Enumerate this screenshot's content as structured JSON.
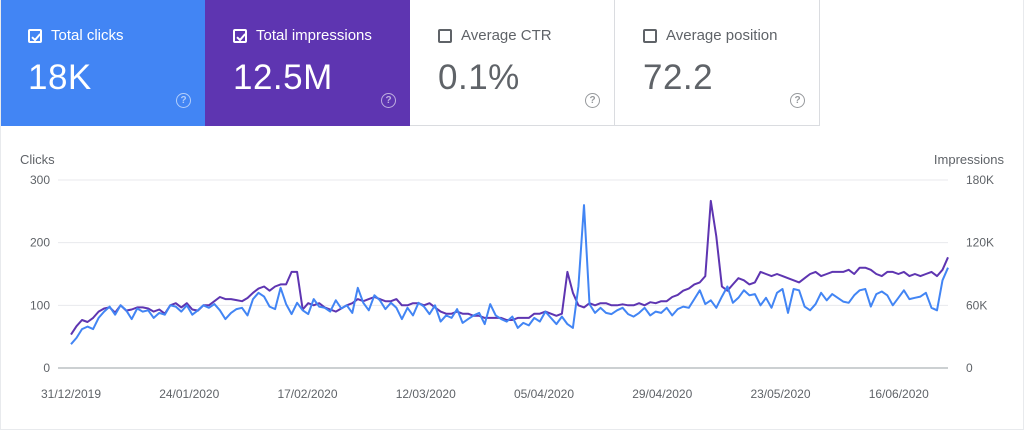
{
  "cards": [
    {
      "label": "Total clicks",
      "value": "18K",
      "checked": true,
      "color": "#4285f4"
    },
    {
      "label": "Total impressions",
      "value": "12.5M",
      "checked": true,
      "color": "#5e35b1"
    },
    {
      "label": "Average CTR",
      "value": "0.1%",
      "checked": false
    },
    {
      "label": "Average position",
      "value": "72.2",
      "checked": false
    }
  ],
  "help_glyph": "?",
  "chart_data": {
    "type": "line",
    "ylabel_left": "Clicks",
    "ylabel_right": "Impressions",
    "y_left_ticks": [
      "0",
      "100",
      "200",
      "300"
    ],
    "y_right_ticks": [
      "0",
      "60K",
      "120K",
      "180K"
    ],
    "ylim_left": [
      0,
      300
    ],
    "ylim_right": [
      0,
      180000
    ],
    "x_ticks": [
      "31/12/2019",
      "24/01/2020",
      "17/02/2020",
      "12/03/2020",
      "05/04/2020",
      "29/04/2020",
      "23/05/2020",
      "16/06/2020"
    ],
    "x_range": [
      "2019-12-31",
      "2020-06-26"
    ],
    "grid": true,
    "series": [
      {
        "name": "Clicks",
        "axis": "left",
        "color": "#4285f4",
        "values": [
          38,
          48,
          62,
          66,
          62,
          80,
          90,
          98,
          85,
          100,
          92,
          78,
          95,
          90,
          92,
          80,
          88,
          85,
          100,
          98,
          90,
          100,
          85,
          92,
          100,
          96,
          102,
          92,
          78,
          88,
          94,
          96,
          84,
          110,
          120,
          114,
          98,
          94,
          128,
          102,
          86,
          104,
          92,
          86,
          110,
          98,
          96,
          90,
          108,
          95,
          100,
          88,
          128,
          104,
          92,
          116,
          108,
          94,
          104,
          96,
          78,
          96,
          84,
          104,
          98,
          86,
          100,
          74,
          84,
          80,
          94,
          72,
          78,
          84,
          88,
          70,
          102,
          84,
          78,
          74,
          82,
          64,
          72,
          68,
          80,
          74,
          90,
          80,
          70,
          82,
          70,
          64,
          130,
          260,
          102,
          88,
          96,
          88,
          86,
          92,
          96,
          86,
          82,
          88,
          96,
          84,
          90,
          88,
          96,
          84,
          94,
          98,
          96,
          110,
          124,
          102,
          108,
          96,
          114,
          130,
          104,
          112,
          124,
          116,
          118,
          100,
          112,
          96,
          120,
          126,
          88,
          126,
          124,
          98,
          92,
          102,
          120,
          108,
          118,
          112,
          106,
          104,
          116,
          124,
          126,
          98,
          118,
          122,
          116,
          100,
          112,
          124,
          110,
          112,
          114,
          120,
          96,
          92,
          140,
          160
        ]
      },
      {
        "name": "Impressions",
        "axis": "right",
        "color": "#5e35b1",
        "values": [
          32000,
          40000,
          46000,
          44000,
          48000,
          54000,
          57000,
          58000,
          53000,
          60000,
          55000,
          56000,
          58000,
          58000,
          57000,
          54000,
          56000,
          52000,
          60000,
          62000,
          58000,
          62000,
          56000,
          55000,
          60000,
          60000,
          64000,
          68000,
          66000,
          66000,
          65000,
          64000,
          67000,
          72000,
          76000,
          78000,
          74000,
          78000,
          80000,
          80000,
          92000,
          92000,
          56000,
          62000,
          60000,
          62000,
          58000,
          56000,
          54000,
          57000,
          60000,
          62000,
          66000,
          64000,
          66000,
          68000,
          66000,
          64000,
          64000,
          66000,
          60000,
          60000,
          62000,
          62000,
          60000,
          62000,
          58000,
          54000,
          52000,
          52000,
          54000,
          52000,
          52000,
          50000,
          50000,
          48000,
          48000,
          48000,
          48000,
          46000,
          46000,
          48000,
          48000,
          48000,
          52000,
          52000,
          54000,
          52000,
          50000,
          52000,
          92000,
          72000,
          60000,
          58000,
          62000,
          60000,
          62000,
          62000,
          60000,
          60000,
          61000,
          60000,
          60000,
          62000,
          60000,
          63000,
          62000,
          64000,
          64000,
          68000,
          70000,
          74000,
          76000,
          80000,
          82000,
          88000,
          160000,
          126000,
          78000,
          74000,
          80000,
          86000,
          84000,
          80000,
          82000,
          92000,
          90000,
          88000,
          90000,
          88000,
          86000,
          84000,
          82000,
          86000,
          90000,
          92000,
          88000,
          90000,
          92000,
          92000,
          92000,
          94000,
          90000,
          96000,
          96000,
          94000,
          90000,
          88000,
          92000,
          92000,
          90000,
          92000,
          88000,
          90000,
          88000,
          90000,
          92000,
          88000,
          94000,
          106000
        ]
      }
    ]
  }
}
